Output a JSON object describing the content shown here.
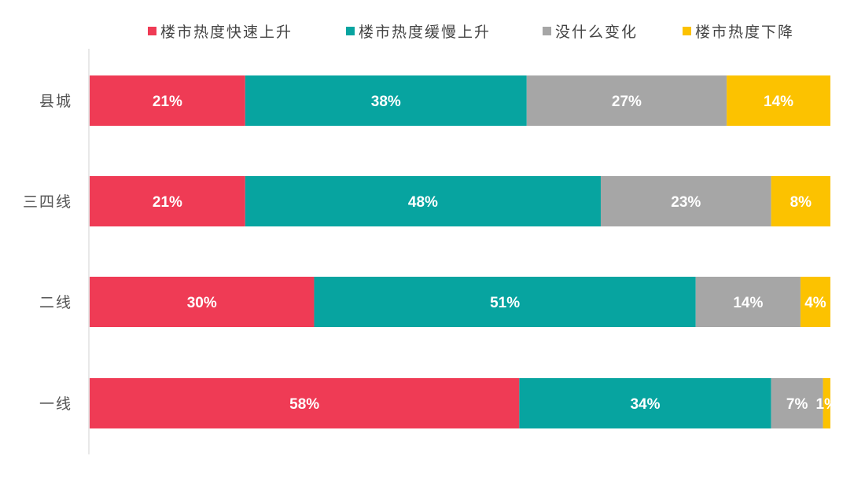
{
  "chart_data": {
    "type": "bar",
    "orientation": "horizontal",
    "stacked": true,
    "categories": [
      "县城",
      "三四线",
      "二线",
      "一线"
    ],
    "series": [
      {
        "name": "楼市热度快速上升",
        "color": "#ef3b55",
        "values": [
          21,
          21,
          30,
          58
        ],
        "labels": [
          "21%",
          "21%",
          "30%",
          "58%"
        ]
      },
      {
        "name": "楼市热度缓慢上升",
        "color": "#07a4a0",
        "values": [
          38,
          48,
          51,
          34
        ],
        "labels": [
          "38%",
          "48%",
          "51%",
          "34%"
        ]
      },
      {
        "name": "没什么变化",
        "color": "#a6a6a6",
        "values": [
          27,
          23,
          14,
          7
        ],
        "labels": [
          "27%",
          "23%",
          "14%",
          "7%"
        ]
      },
      {
        "name": "楼市热度下降",
        "color": "#fcc200",
        "values": [
          14,
          8,
          4,
          1
        ],
        "labels": [
          "14%",
          "8%",
          "4%",
          "1%"
        ]
      }
    ],
    "xlim": [
      0,
      100
    ],
    "legend_position": "top",
    "grid": false
  }
}
